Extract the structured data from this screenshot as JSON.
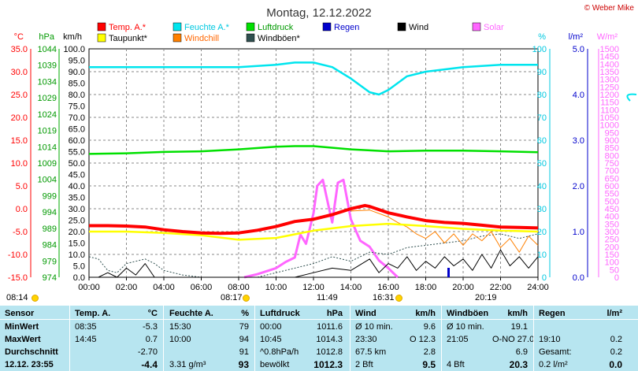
{
  "title": "Montag, 12.12.2022",
  "copyright": "© Weber Mike",
  "legend": [
    {
      "label": "Temp. A.*",
      "color": "#ff0000"
    },
    {
      "label": "Feuchte A.*",
      "color": "#00e5ee"
    },
    {
      "label": "Luftdruck",
      "color": "#00e000"
    },
    {
      "label": "Regen",
      "color": "#0000cc"
    },
    {
      "label": "Wind",
      "color": "#000000"
    },
    {
      "label": "Solar",
      "color": "#ff66ff"
    },
    {
      "label": "Taupunkt*",
      "color": "#ffff00"
    },
    {
      "label": "Windchill",
      "color": "#ff8000"
    },
    {
      "label": "Windböen*",
      "color": "#2f4f4f"
    }
  ],
  "axis_units": {
    "temp": "°C",
    "press": "hPa",
    "wind": "km/h",
    "hum": "%",
    "rain": "l/m²",
    "solar": "W/m²"
  },
  "colors": {
    "temp": "#ff0000",
    "press": "#00aa00",
    "hum": "#00c8e0",
    "rain": "#0000cc",
    "solar": "#ff66ff",
    "dew": "#ffff00",
    "chill": "#ff8000",
    "gust": "#2f4f4f"
  },
  "sun_events": {
    "sunrise": "08:14",
    "sunset": "16:31",
    "times": [
      "08:17",
      "11:49",
      "16:31",
      "20:19"
    ]
  },
  "chart_data": {
    "type": "line",
    "x": [
      "00:00",
      "02:00",
      "04:00",
      "06:00",
      "08:00",
      "10:00",
      "12:00",
      "14:00",
      "16:00",
      "18:00",
      "20:00",
      "22:00",
      "24:00"
    ],
    "axes": {
      "temp": {
        "unit": "°C",
        "ticks": [
          "35.0",
          "30.0",
          "25.0",
          "20.0",
          "15.0",
          "10.0",
          "5.0",
          "0.0",
          "-5.0",
          "-10.0",
          "-15.0"
        ],
        "ylim": [
          -15,
          35
        ]
      },
      "press": {
        "unit": "hPa",
        "ticks": [
          "1044",
          "1039",
          "1034",
          "1029",
          "1024",
          "1019",
          "1014",
          "1009",
          "1004",
          "999",
          "994",
          "989",
          "984",
          "979",
          "974"
        ],
        "ylim": [
          974,
          1044
        ]
      },
      "wind": {
        "unit": "km/h",
        "ticks": [
          "100.0",
          "95.0",
          "90.0",
          "85.0",
          "80.0",
          "75.0",
          "70.0",
          "65.0",
          "60.0",
          "55.0",
          "50.0",
          "45.0",
          "40.0",
          "35.0",
          "30.0",
          "25.0",
          "20.0",
          "15.0",
          "10.0",
          "5.0",
          "0.0"
        ],
        "ylim": [
          0,
          100
        ]
      },
      "hum": {
        "unit": "%",
        "ticks": [
          "100",
          "90",
          "80",
          "70",
          "60",
          "50",
          "40",
          "30",
          "20",
          "10",
          "0"
        ],
        "ylim": [
          0,
          100
        ]
      },
      "rain": {
        "unit": "l/m²",
        "ticks": [
          "5.0",
          "4.0",
          "3.0",
          "2.0",
          "1.0",
          "0.0"
        ],
        "ylim": [
          0,
          5
        ]
      },
      "solar": {
        "unit": "W/m²",
        "ticks": [
          "1500",
          "1450",
          "1400",
          "1350",
          "1300",
          "1250",
          "1200",
          "1150",
          "1100",
          "1050",
          "1000",
          "950",
          "900",
          "850",
          "800",
          "750",
          "700",
          "650",
          "600",
          "550",
          "500",
          "450",
          "400",
          "350",
          "300",
          "250",
          "200",
          "150",
          "100",
          "50",
          "0"
        ],
        "ylim": [
          0,
          1500
        ]
      }
    },
    "series": [
      {
        "name": "Temp. A.*",
        "axis": "temp",
        "x": [
          0,
          1,
          2,
          3,
          4,
          5,
          6,
          7,
          8,
          9,
          10,
          11,
          12,
          13,
          14,
          14.75,
          15,
          16,
          17,
          18,
          19,
          20,
          21,
          22,
          23,
          24
        ],
        "values": [
          -3.7,
          -3.7,
          -3.8,
          -4.0,
          -4.6,
          -5.0,
          -5.3,
          -5.4,
          -5.3,
          -4.7,
          -3.9,
          -2.8,
          -2.3,
          -1.3,
          0.0,
          0.7,
          0.5,
          -0.9,
          -1.8,
          -2.6,
          -3.0,
          -3.2,
          -3.6,
          -4.0,
          -4.1,
          -4.2
        ]
      },
      {
        "name": "Feuchte A.*",
        "axis": "hum",
        "x": [
          0,
          2,
          4,
          6,
          8,
          10,
          11,
          12,
          13,
          14,
          15,
          15.5,
          16,
          17,
          18,
          20,
          22,
          24
        ],
        "values": [
          92,
          92,
          92,
          92,
          92,
          93,
          94,
          94,
          92,
          87,
          81,
          80,
          82,
          88,
          90,
          92,
          93,
          93
        ]
      },
      {
        "name": "Luftdruck",
        "axis": "press",
        "x": [
          0,
          2,
          4,
          6,
          8,
          10,
          11,
          12,
          14,
          16,
          18,
          20,
          22,
          24
        ],
        "values": [
          1011.8,
          1012.0,
          1012.4,
          1012.6,
          1013.2,
          1014.0,
          1014.2,
          1014.2,
          1013.2,
          1012.6,
          1012.8,
          1012.8,
          1012.6,
          1012.3
        ]
      },
      {
        "name": "Taupunkt*",
        "axis": "temp",
        "x": [
          0,
          2,
          4,
          6,
          8,
          10,
          12,
          14,
          16,
          18,
          20,
          22,
          24
        ],
        "values": [
          -5.0,
          -5.0,
          -5.3,
          -5.8,
          -6.8,
          -6.4,
          -4.8,
          -3.8,
          -3.3,
          -3.8,
          -4.4,
          -4.8,
          -5.0
        ]
      },
      {
        "name": "Windchill",
        "axis": "temp",
        "x": [
          14,
          15,
          16,
          16.5,
          17,
          17.5,
          18,
          18.5,
          19,
          19.5,
          20,
          20.5,
          21,
          21.5,
          22,
          22.5,
          23,
          23.5,
          24
        ],
        "values": [
          -0.5,
          -0.3,
          -1.8,
          -3.0,
          -4.0,
          -5.5,
          -6.5,
          -5.0,
          -7.5,
          -5.5,
          -8.0,
          -5.5,
          -7.0,
          -5.0,
          -8.5,
          -6.5,
          -9.5,
          -6.0,
          -8.0
        ]
      },
      {
        "name": "Wind",
        "axis": "wind",
        "x": [
          0,
          0.5,
          1,
          1.5,
          2,
          2.5,
          3,
          3.5,
          4,
          6,
          8,
          9,
          10,
          11,
          12,
          13,
          14,
          15,
          15.5,
          16,
          16.5,
          17,
          17.5,
          18,
          18.5,
          19,
          19.5,
          20,
          20.5,
          21,
          21.5,
          22,
          22.5,
          23,
          23.5,
          24
        ],
        "values": [
          0,
          0,
          2,
          0,
          4,
          1,
          6,
          0,
          0,
          0,
          0,
          0,
          0,
          0,
          2,
          4,
          3,
          8,
          2,
          6,
          4,
          9,
          3,
          7,
          4,
          9,
          5,
          8,
          3,
          10,
          4,
          12,
          5,
          9,
          4,
          9
        ]
      },
      {
        "name": "Windböen*",
        "axis": "wind",
        "x": [
          0,
          0.5,
          1,
          1.5,
          2,
          2.5,
          3,
          3.5,
          4,
          5,
          6,
          7,
          8,
          9,
          10,
          11,
          12,
          13,
          14,
          15,
          16,
          17,
          18,
          19,
          20,
          21,
          22,
          23,
          24
        ],
        "values": [
          9,
          8,
          3,
          2,
          6,
          7,
          8,
          6,
          3,
          1,
          0,
          0,
          0,
          0,
          2,
          4,
          6,
          9,
          7,
          11,
          10,
          13,
          14,
          15,
          16,
          18,
          19,
          17,
          19
        ]
      },
      {
        "name": "Solar",
        "axis": "solar",
        "x": [
          8.3,
          9,
          10,
          10.5,
          11,
          11.3,
          11.6,
          12,
          12.2,
          12.5,
          12.8,
          13,
          13.3,
          13.6,
          14,
          14.5,
          15,
          15.5,
          16,
          16.5
        ],
        "values": [
          0,
          20,
          60,
          100,
          130,
          280,
          220,
          420,
          600,
          640,
          470,
          360,
          620,
          640,
          380,
          240,
          200,
          110,
          60,
          0
        ]
      }
    ]
  },
  "table": {
    "headers": [
      "Sensor",
      "Temp. A.",
      "°C",
      "Feuchte A.",
      "%",
      "Luftdruck",
      "hPa",
      "Wind",
      "km/h",
      "Windböen",
      "km/h",
      "Regen",
      "l/m²"
    ],
    "rows": [
      {
        "label": "MinWert",
        "cells": [
          "08:35",
          "-5.3",
          "15:30",
          "79",
          "00:00",
          "1011.6",
          "Ø 10 min.",
          "9.6",
          "Ø 10 min.",
          "19.1",
          "",
          ""
        ]
      },
      {
        "label": "MaxWert",
        "cells": [
          "14:45",
          "0.7",
          "10:00",
          "94",
          "10:45",
          "1014.3",
          "23:30",
          "O 12.3",
          "21:05",
          "O-NO 27.0",
          "19:10",
          "0.2"
        ]
      },
      {
        "label": "Durchschnitt",
        "cells": [
          "",
          "-2.70",
          "",
          "91",
          "^0.8hPa/h",
          "1012.8",
          "67.5 km",
          "2.8",
          "",
          "6.9",
          "Gesamt:",
          "0.2"
        ]
      },
      {
        "label": "12.12. 23:55",
        "cells": [
          "",
          "-4.4",
          "3.31 g/m³",
          "93",
          "bewölkt",
          "1012.3",
          "2 Bft",
          "9.5",
          "4 Bft",
          "20.3",
          "0.2 l/m²",
          "0.0"
        ]
      }
    ]
  }
}
